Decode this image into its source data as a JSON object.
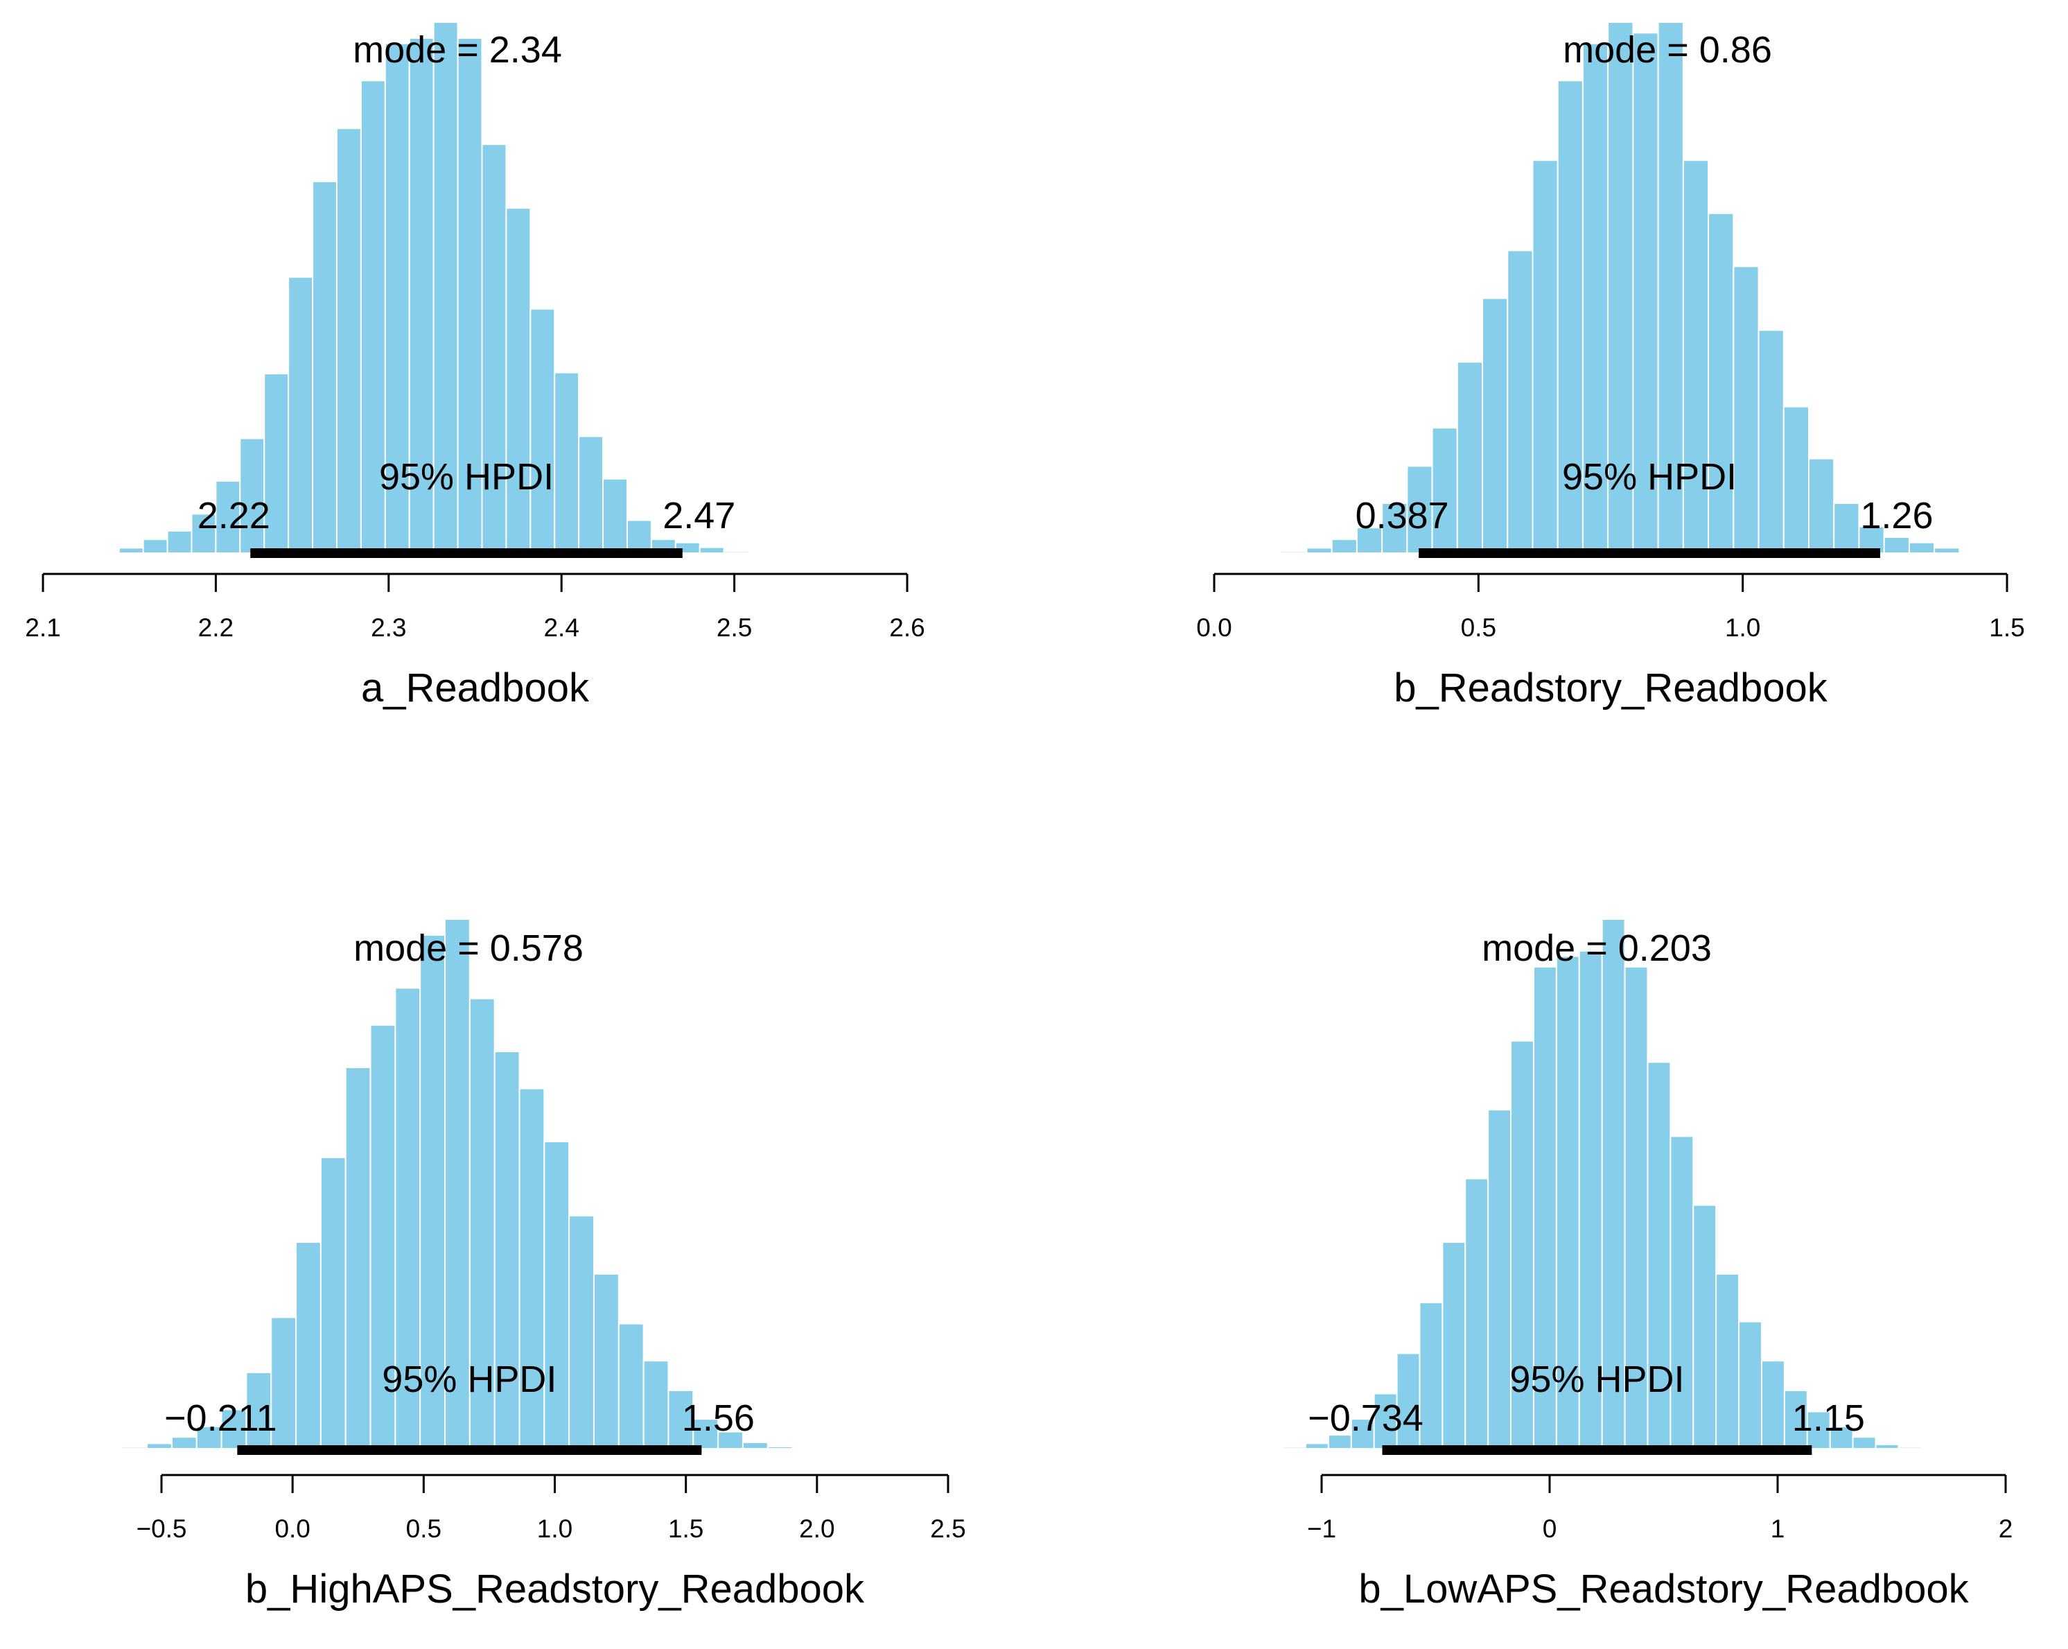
{
  "colors": {
    "bar_fill": "#87ceeb",
    "bar_stroke": "#ffffff",
    "ink": "#000000",
    "background": "#ffffff"
  },
  "chart_data": [
    {
      "type": "histogram",
      "xlabel": "a_Readbook",
      "mode_label": "mode = 2.34",
      "mode": 2.34,
      "hpdi_title": "95% HPDI",
      "hpdi": [
        2.22,
        2.47
      ],
      "hpdi_labels": [
        "2.22",
        "2.47"
      ],
      "xlim": [
        2.1,
        2.6
      ],
      "xticks": [
        2.1,
        2.2,
        2.3,
        2.4,
        2.5,
        2.6
      ],
      "xtick_labels": [
        "2.1",
        "2.2",
        "2.3",
        "2.4",
        "2.5",
        "2.6"
      ],
      "bin_start": 2.13,
      "bin_width": 0.014,
      "counts": [
        0.2,
        1.0,
        2.6,
        4.2,
        7.4,
        13.6,
        21.6,
        33.8,
        52.0,
        70.0,
        80.0,
        89.0,
        96.0,
        97.0,
        100.0,
        97.0,
        77.0,
        65.0,
        46.0,
        34.0,
        22.0,
        14.0,
        6.2,
        2.6,
        2.0,
        1.1,
        0.3
      ]
    },
    {
      "type": "histogram",
      "xlabel": "b_Readstory_Readbook",
      "mode_label": "mode = 0.86",
      "mode": 0.86,
      "hpdi_title": "95% HPDI",
      "hpdi": [
        0.387,
        1.26
      ],
      "hpdi_labels": [
        "0.387",
        "1.26"
      ],
      "xlim": [
        0.0,
        1.5
      ],
      "xticks": [
        0.0,
        0.5,
        1.0,
        1.5
      ],
      "xtick_labels": [
        "0.0",
        "0.5",
        "1.0",
        "1.5"
      ],
      "bin_start": 0.08,
      "bin_width": 0.0475,
      "counts": [
        0.2,
        0.3,
        1.0,
        2.6,
        4.8,
        9.4,
        16.4,
        23.6,
        36.0,
        48.0,
        57.0,
        74.0,
        89.0,
        96.0,
        100.0,
        98.0,
        100.0,
        74.0,
        64.0,
        54.0,
        42.0,
        27.6,
        17.8,
        9.4,
        5.0,
        3.0,
        2.0,
        1.0
      ]
    },
    {
      "type": "histogram",
      "xlabel": "b_HighAPS_Readstory_Readbook",
      "mode_label": "mode = 0.578",
      "mode": 0.578,
      "hpdi_title": "95% HPDI",
      "hpdi": [
        -0.211,
        1.56
      ],
      "hpdi_labels": [
        "−0.211",
        "1.56"
      ],
      "xlim": [
        -0.5,
        2.5
      ],
      "xticks": [
        -0.5,
        0.0,
        0.5,
        1.0,
        1.5,
        2.0,
        2.5
      ],
      "xtick_labels": [
        "−0.5",
        "0.0",
        "0.5",
        "1.0",
        "1.5",
        "2.0",
        "2.5"
      ],
      "bin_start": -0.65,
      "bin_width": 0.0947,
      "counts": [
        0.3,
        1.0,
        2.2,
        4.2,
        7.4,
        14.4,
        24.8,
        39.0,
        55.0,
        72.0,
        80.0,
        87.0,
        97.0,
        100.0,
        85.0,
        75.0,
        68.0,
        58.0,
        44.0,
        33.0,
        23.6,
        16.6,
        11.0,
        5.6,
        3.2,
        1.2,
        0.4,
        0.1
      ]
    },
    {
      "type": "histogram",
      "xlabel": "b_LowAPS_Readstory_Readbook",
      "mode_label": "mode = 0.203",
      "mode": 0.203,
      "hpdi_title": "95% HPDI",
      "hpdi": [
        -0.734,
        1.15
      ],
      "hpdi_labels": [
        "−0.734",
        "1.15"
      ],
      "xlim": [
        -1,
        2
      ],
      "xticks": [
        -1,
        0,
        1,
        2
      ],
      "xtick_labels": [
        "−1",
        "0",
        "1",
        "2"
      ],
      "bin_start": -1.17,
      "bin_width": 0.1,
      "counts": [
        0.3,
        1.0,
        2.6,
        5.6,
        10.4,
        18.0,
        27.6,
        39.0,
        51.0,
        64.0,
        77.0,
        91.0,
        93.0,
        94.0,
        100.0,
        91.0,
        73.0,
        59.0,
        46.0,
        33.0,
        24.0,
        16.6,
        11.0,
        7.0,
        4.2,
        2.2,
        0.8,
        0.3,
        0.1
      ]
    }
  ]
}
